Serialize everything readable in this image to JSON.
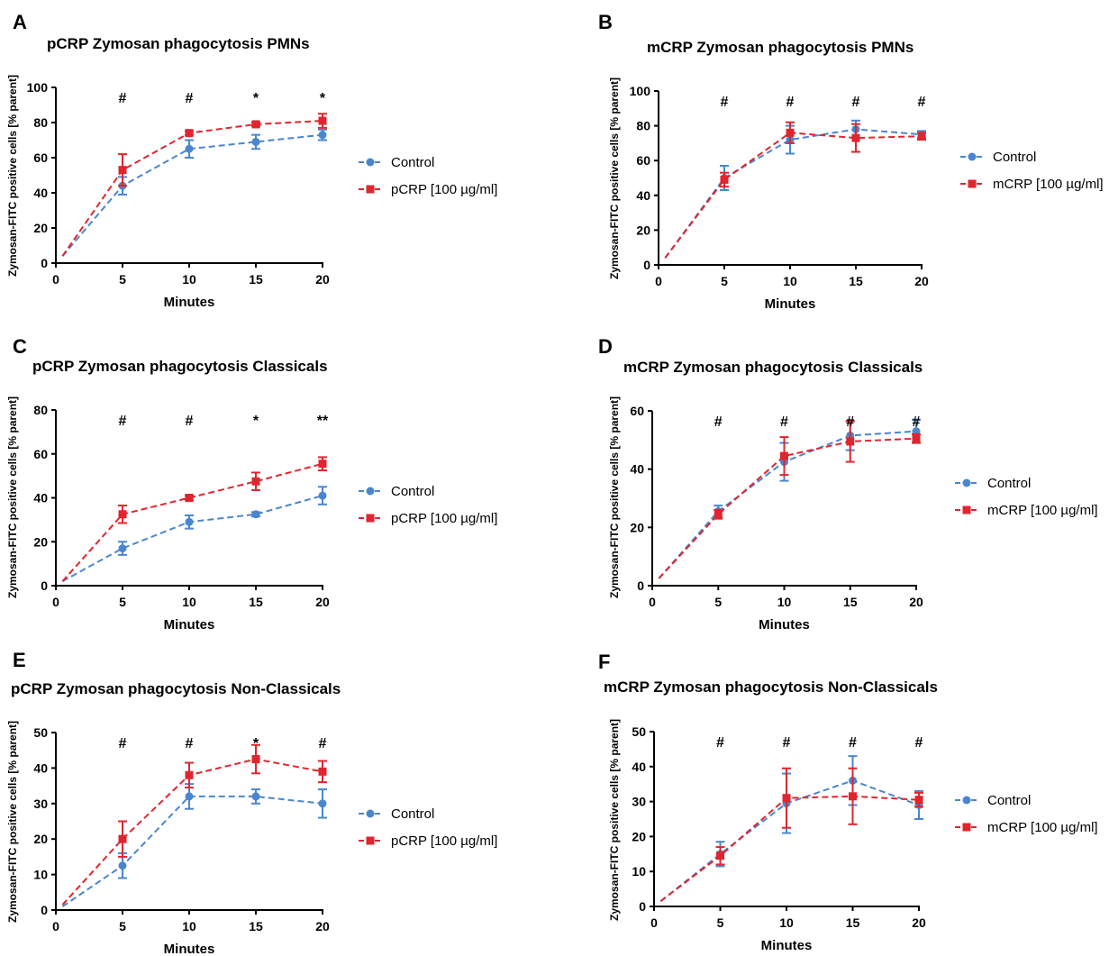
{
  "colors": {
    "control": "#4a86cf",
    "treatment": "#e0252e",
    "axis": "#000000"
  },
  "chart_data": [
    {
      "panel": "A",
      "type": "line",
      "title": "pCRP Zymosan phagocytosis PMNs",
      "xlabel": "Minutes",
      "ylabel": "Zymosan-FITC positive cells [% parent]",
      "xlim": [
        0,
        20
      ],
      "ylim": [
        0,
        100
      ],
      "xticks": [
        0,
        5,
        10,
        15,
        20
      ],
      "yticks": [
        0,
        20,
        40,
        60,
        80,
        100
      ],
      "x": [
        0.5,
        5,
        10,
        15,
        20
      ],
      "series": [
        {
          "name": "Control",
          "values": [
            4,
            44,
            65,
            69,
            73
          ],
          "errors": [
            0,
            5,
            5,
            4,
            3
          ]
        },
        {
          "name": "pCRP [100 µg/ml]",
          "values": [
            4,
            53,
            74,
            79,
            81
          ],
          "errors": [
            0,
            9,
            1,
            1,
            4
          ]
        }
      ],
      "annotations": [
        {
          "x": 5,
          "label": "#"
        },
        {
          "x": 10,
          "label": "#"
        },
        {
          "x": 15,
          "label": "*"
        },
        {
          "x": 20,
          "label": "*"
        }
      ]
    },
    {
      "panel": "B",
      "type": "line",
      "title": "mCRP Zymosan phagocytosis PMNs",
      "xlabel": "Minutes",
      "ylabel": "Zymosan-FITC positive cells [% parent]",
      "xlim": [
        0,
        20
      ],
      "ylim": [
        0,
        100
      ],
      "xticks": [
        0,
        5,
        10,
        15,
        20
      ],
      "yticks": [
        0,
        20,
        40,
        60,
        80,
        100
      ],
      "x": [
        0.5,
        5,
        10,
        15,
        20
      ],
      "series": [
        {
          "name": "Control",
          "values": [
            4,
            50,
            72,
            78,
            75
          ],
          "errors": [
            0,
            7,
            8,
            5,
            2
          ]
        },
        {
          "name": "mCRP [100 µg/ml]",
          "values": [
            4,
            49,
            76,
            73,
            74
          ],
          "errors": [
            0,
            4,
            6,
            8,
            2
          ]
        }
      ],
      "annotations": [
        {
          "x": 5,
          "label": "#"
        },
        {
          "x": 10,
          "label": "#"
        },
        {
          "x": 15,
          "label": "#"
        },
        {
          "x": 20,
          "label": "#"
        }
      ]
    },
    {
      "panel": "C",
      "type": "line",
      "title": "pCRP Zymosan phagocytosis Classicals",
      "xlabel": "Minutes",
      "ylabel": "Zymosan-FITC positive cells [% parent]",
      "xlim": [
        0,
        20
      ],
      "ylim": [
        0,
        80
      ],
      "xticks": [
        0,
        5,
        10,
        15,
        20
      ],
      "yticks": [
        0,
        20,
        40,
        60,
        80
      ],
      "x": [
        0.5,
        5,
        10,
        15,
        20
      ],
      "series": [
        {
          "name": "Control",
          "values": [
            2,
            17,
            29,
            32.5,
            41
          ],
          "errors": [
            0,
            3,
            3,
            1,
            4
          ]
        },
        {
          "name": "pCRP [100 µg/ml]",
          "values": [
            2,
            32.5,
            40,
            47.5,
            55.5
          ],
          "errors": [
            0,
            4,
            1,
            4,
            3
          ]
        }
      ],
      "annotations": [
        {
          "x": 5,
          "label": "#"
        },
        {
          "x": 10,
          "label": "#"
        },
        {
          "x": 15,
          "label": "*"
        },
        {
          "x": 20,
          "label": "**"
        }
      ]
    },
    {
      "panel": "D",
      "type": "line",
      "title": "mCRP Zymosan phagocytosis Classicals",
      "xlabel": "Minutes",
      "ylabel": "Zymosan-FITC positive cells [% parent]",
      "xlim": [
        0,
        20
      ],
      "ylim": [
        0,
        60
      ],
      "xticks": [
        0,
        5,
        10,
        15,
        20
      ],
      "yticks": [
        0,
        20,
        40,
        60
      ],
      "x": [
        0.5,
        5,
        10,
        15,
        20
      ],
      "series": [
        {
          "name": "Control",
          "values": [
            2.5,
            25.5,
            42.5,
            51.5,
            53
          ],
          "errors": [
            0,
            2,
            6.5,
            5,
            4
          ]
        },
        {
          "name": "mCRP [100 µg/ml]",
          "values": [
            2.5,
            24.5,
            44.5,
            49.5,
            50.5
          ],
          "errors": [
            0,
            1.5,
            6.5,
            7,
            1.5
          ]
        }
      ],
      "annotations": [
        {
          "x": 5,
          "label": "#"
        },
        {
          "x": 10,
          "label": "#"
        },
        {
          "x": 15,
          "label": "#"
        },
        {
          "x": 20,
          "label": "#"
        }
      ]
    },
    {
      "panel": "E",
      "type": "line",
      "title": "pCRP Zymosan phagocytosis Non-Classicals",
      "xlabel": "Minutes",
      "ylabel": "Zymosan-FITC positive cells [% parent]",
      "xlim": [
        0,
        20
      ],
      "ylim": [
        0,
        50
      ],
      "xticks": [
        0,
        5,
        10,
        15,
        20
      ],
      "yticks": [
        0,
        10,
        20,
        30,
        40,
        50
      ],
      "x": [
        0.5,
        5,
        10,
        15,
        20
      ],
      "series": [
        {
          "name": "Control",
          "values": [
            1,
            12.5,
            32,
            32,
            30
          ],
          "errors": [
            0,
            3.5,
            3.5,
            2,
            4
          ]
        },
        {
          "name": "pCRP [100 µg/ml]",
          "values": [
            1.5,
            20,
            38,
            42.5,
            39
          ],
          "errors": [
            0,
            5,
            3.5,
            4,
            3
          ]
        }
      ],
      "annotations": [
        {
          "x": 5,
          "label": "#"
        },
        {
          "x": 10,
          "label": "#"
        },
        {
          "x": 15,
          "label": "*"
        },
        {
          "x": 20,
          "label": "#"
        }
      ]
    },
    {
      "panel": "F",
      "type": "line",
      "title": "mCRP Zymosan phagocytosis Non-Classicals",
      "xlabel": "Minutes",
      "ylabel": "Zymosan-FITC positive cells [% parent]",
      "xlim": [
        0,
        20
      ],
      "ylim": [
        0,
        50
      ],
      "xticks": [
        0,
        5,
        10,
        15,
        20
      ],
      "yticks": [
        0,
        10,
        20,
        30,
        40,
        50
      ],
      "x": [
        0.5,
        5,
        10,
        15,
        20
      ],
      "series": [
        {
          "name": "Control",
          "values": [
            1.5,
            15,
            29.5,
            36,
            29
          ],
          "errors": [
            0,
            3.5,
            8.5,
            7,
            4
          ]
        },
        {
          "name": "mCRP [100 µg/ml]",
          "values": [
            1.5,
            14.5,
            31,
            31.5,
            30.5
          ],
          "errors": [
            0,
            2.5,
            8.5,
            8,
            2
          ]
        }
      ],
      "annotations": [
        {
          "x": 5,
          "label": "#"
        },
        {
          "x": 10,
          "label": "#"
        },
        {
          "x": 15,
          "label": "#"
        },
        {
          "x": 20,
          "label": "#"
        }
      ]
    }
  ]
}
